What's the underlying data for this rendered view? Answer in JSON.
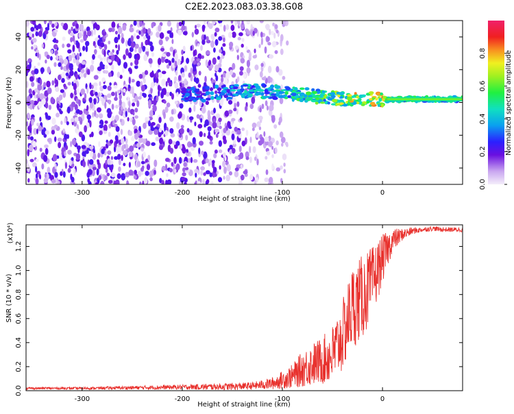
{
  "chart_data": [
    {
      "type": "heatmap",
      "title": "C2E2.2023.083.03.38.G08",
      "xlabel": "Height of straight line (km)",
      "ylabel": "Frequency (Hz)",
      "xlim": [
        -356,
        80
      ],
      "ylim": [
        -50,
        50
      ],
      "x_ticks": [
        "-300",
        "-200",
        "-100",
        "0"
      ],
      "x_tick_values": [
        -300,
        -200,
        -100,
        0
      ],
      "y_ticks": [
        "-40",
        "-20",
        "0",
        "20",
        "40"
      ],
      "y_tick_values": [
        -40,
        -20,
        0,
        20,
        40
      ],
      "colorbar": {
        "label": "Normalized spectral amplitude",
        "range": [
          0,
          1
        ],
        "ticks": [
          "0.0",
          "0.2",
          "0.4",
          "0.6",
          "0.8"
        ],
        "tick_values": [
          0.0,
          0.2,
          0.4,
          0.6,
          0.8
        ]
      },
      "signal_track": {
        "description_values": "frequency of strongest amplitude vs height",
        "x": [
          -200,
          -180,
          -160,
          -140,
          -120,
          -100,
          -80,
          -60,
          -40,
          -20,
          0,
          20,
          40,
          60,
          80
        ],
        "freq": [
          5,
          5,
          6,
          7,
          7,
          6,
          5,
          3,
          2,
          2,
          2,
          2,
          2,
          2,
          2
        ],
        "amplitude": [
          0.3,
          0.35,
          0.4,
          0.45,
          0.5,
          0.5,
          0.55,
          0.6,
          0.7,
          0.8,
          0.85,
          0.5,
          0.55,
          0.55,
          0.55
        ]
      },
      "noise_extent_x": [
        -356,
        -95
      ]
    },
    {
      "type": "line",
      "xlabel": "Height of straight line (km)",
      "ylabel": "SNR (10 * v/v)",
      "y_multiplier": "(x10⁴)",
      "xlim": [
        -356,
        80
      ],
      "ylim": [
        0,
        1.38
      ],
      "x_ticks": [
        "-300",
        "-200",
        "-100",
        "0"
      ],
      "x_tick_values": [
        -300,
        -200,
        -100,
        0
      ],
      "y_ticks": [
        "0.0",
        "0.2",
        "0.4",
        "0.6",
        "0.8",
        "1.0",
        "1.2"
      ],
      "y_tick_values": [
        0.0,
        0.2,
        0.4,
        0.6,
        0.8,
        1.0,
        1.2
      ],
      "series": [
        {
          "color": "#e8302c",
          "x": [
            -356,
            -300,
            -250,
            -200,
            -150,
            -130,
            -110,
            -90,
            -80,
            -70,
            -60,
            -50,
            -40,
            -30,
            -20,
            -10,
            0,
            10,
            20,
            30,
            40,
            50,
            60,
            70,
            80
          ],
          "y": [
            0.02,
            0.02,
            0.025,
            0.03,
            0.035,
            0.04,
            0.06,
            0.12,
            0.18,
            0.22,
            0.25,
            0.3,
            0.45,
            0.7,
            0.78,
            0.9,
            1.1,
            1.25,
            1.3,
            1.33,
            1.34,
            1.35,
            1.34,
            1.34,
            1.34
          ],
          "spread": [
            0.01,
            0.01,
            0.015,
            0.02,
            0.03,
            0.03,
            0.05,
            0.1,
            0.15,
            0.18,
            0.2,
            0.25,
            0.3,
            0.35,
            0.35,
            0.3,
            0.2,
            0.1,
            0.05,
            0.03,
            0.02,
            0.02,
            0.02,
            0.02,
            0.02
          ]
        }
      ]
    }
  ]
}
